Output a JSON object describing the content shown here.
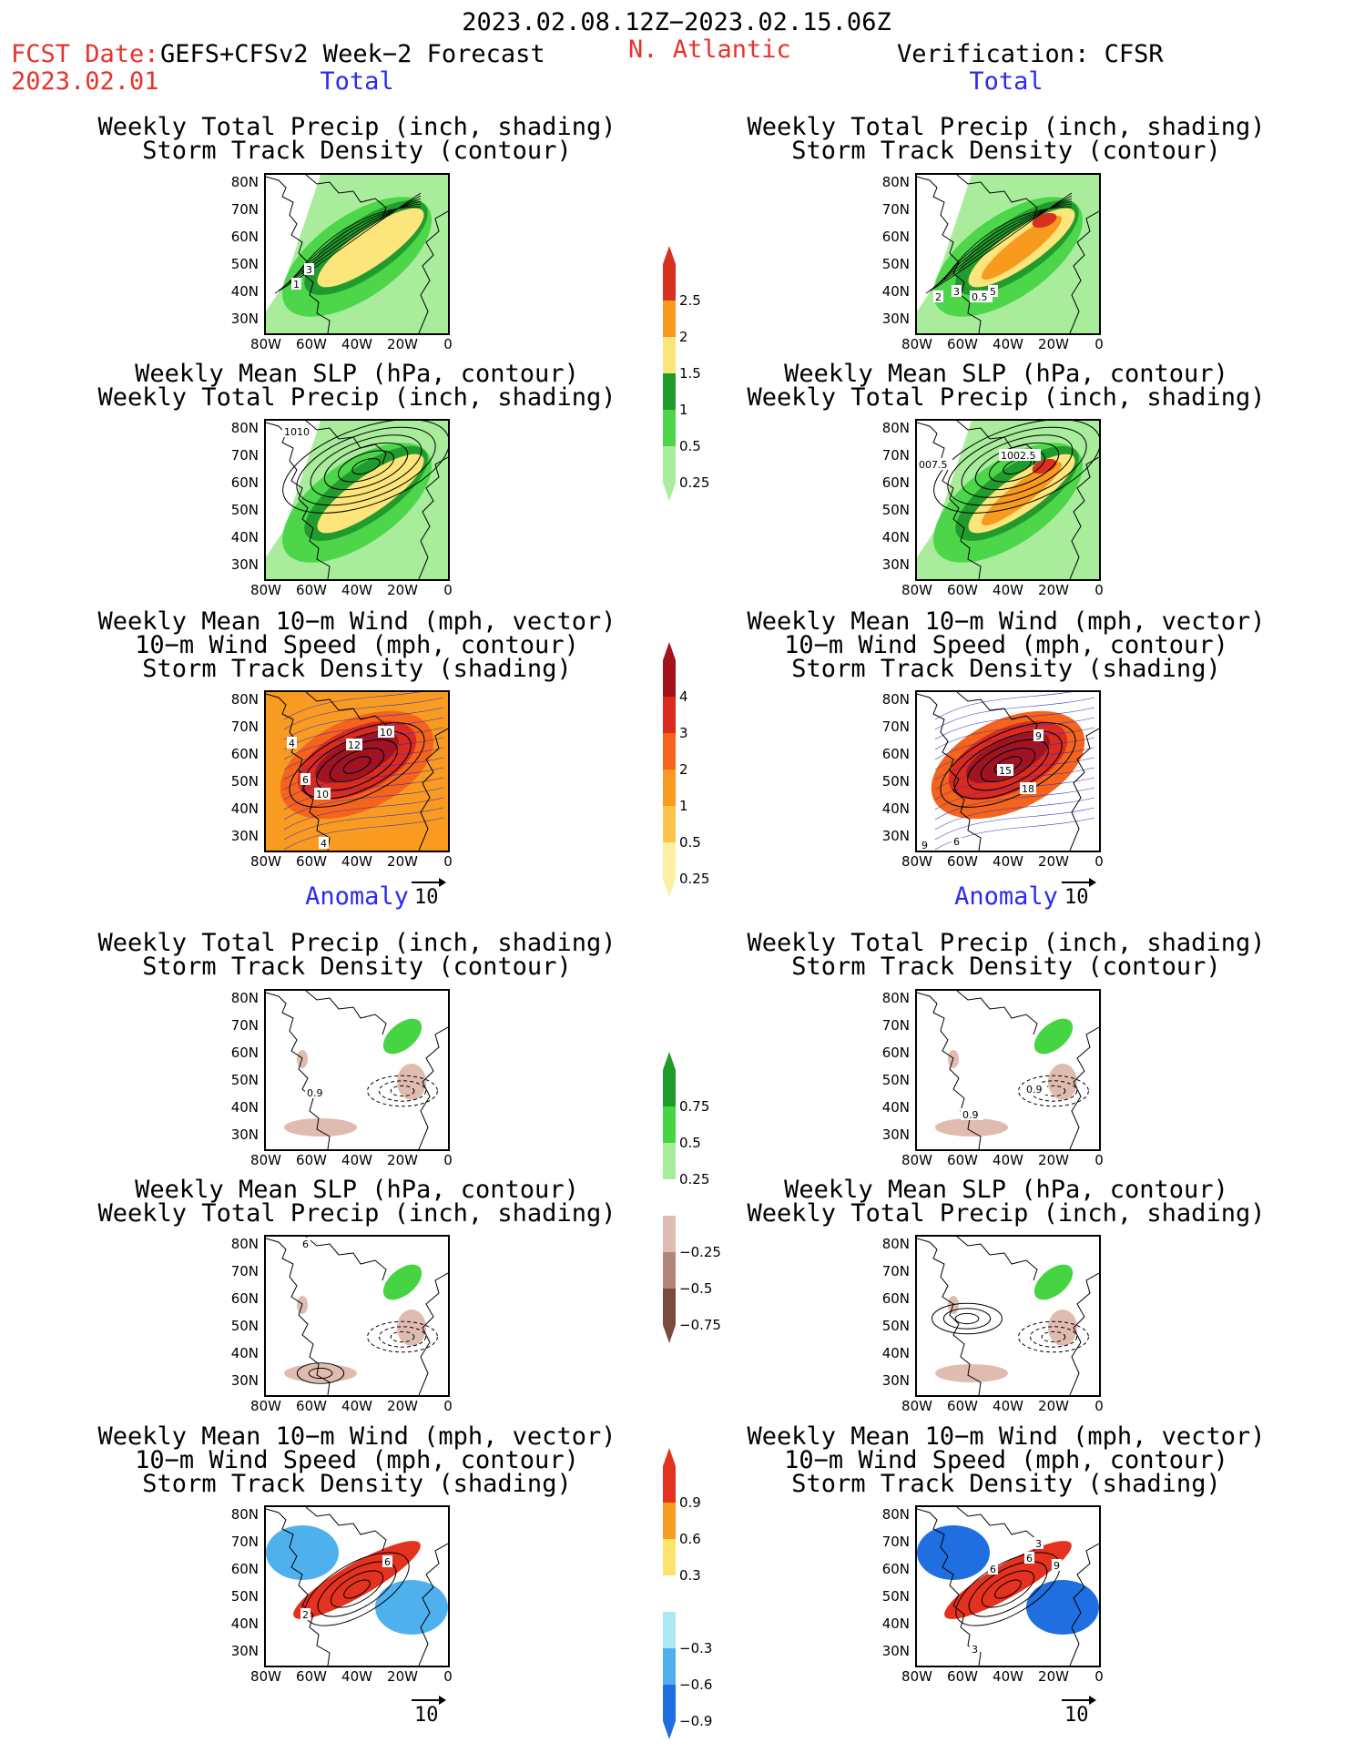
{
  "header": {
    "period": "2023.02.08.12Z−2023.02.15.06Z",
    "fcst_label": "FCST Date:",
    "fcst_date": "2023.02.01",
    "model": "GEFS+CFSv2 Week−2 Forecast",
    "region": "N. Atlantic",
    "verification": "Verification: CFSR"
  },
  "sections": {
    "total": "Total",
    "anomaly": "Anomaly"
  },
  "titles": {
    "precip_track_1": "Weekly Total Precip (inch, shading)",
    "precip_track_2": "Storm Track Density (contour)",
    "slp_precip_1": "Weekly Mean SLP (hPa, contour)",
    "slp_precip_2": "Weekly Total Precip (inch, shading)",
    "wind_1": "Weekly Mean 10−m Wind (mph, vector)",
    "wind_2": "10−m Wind Speed (mph, contour)",
    "wind_3": "Storm Track Density (shading)"
  },
  "axes": {
    "lat": [
      "80N",
      "70N",
      "60N",
      "50N",
      "40N",
      "30N"
    ],
    "lon": [
      "80W",
      "60W",
      "40W",
      "20W",
      "0"
    ]
  },
  "vector_ref": "10",
  "panel_labels": {
    "fc_precip": [
      "1",
      "3"
    ],
    "ob_precip": [
      "2",
      "3",
      "0.5",
      "5"
    ],
    "fc_slp": [
      "1010"
    ],
    "ob_slp": [
      "007.5",
      "1002.5"
    ],
    "fc_wind": [
      "12",
      "10",
      "10",
      "4",
      "4",
      "6"
    ],
    "ob_wind": [
      "15",
      "18",
      "9",
      "9",
      "6"
    ],
    "fc_anom_precip": [
      "0.9"
    ],
    "ob_anom_precip": [
      "0.9",
      "0.9"
    ],
    "fc_anom_slp": [
      "6"
    ],
    "fc_anom_wind": [
      "6",
      "2"
    ],
    "ob_anom_wind": [
      "6",
      "3",
      "6",
      "9",
      "3"
    ]
  },
  "colorbars": {
    "precip_total": {
      "labels": [
        "2.5",
        "2",
        "1.5",
        "1",
        "0.5",
        "0.25"
      ],
      "colors": [
        "#d7301f",
        "#f79a1e",
        "#fce57a",
        "#229b2e",
        "#4dd64a",
        "#a8ec9c"
      ]
    },
    "track_total": {
      "labels": [
        "4",
        "3",
        "2",
        "1",
        "0.5",
        "0.25"
      ],
      "colors": [
        "#a4121b",
        "#dc2a1e",
        "#f5641a",
        "#f89b20",
        "#fcc44a",
        "#fdf0a4"
      ]
    },
    "precip_anom": {
      "labels": [
        "0.75",
        "0.5",
        "0.25",
        "−0.25",
        "−0.5",
        "−0.75"
      ],
      "colors": [
        "#1e9c2a",
        "#46d443",
        "#a7ec9a",
        "#ffffff",
        "#e0bcb0",
        "#b2857a",
        "#7a4c3f"
      ]
    },
    "track_anom": {
      "labels": [
        "0.9",
        "0.6",
        "0.3",
        "−0.3",
        "−0.6",
        "−0.9"
      ],
      "colors": [
        "#e3321f",
        "#f79b22",
        "#fde46c",
        "#ffffff",
        "#aee8f5",
        "#4fb0ee",
        "#1f6fe0"
      ]
    }
  },
  "colors": {
    "header_red": "#e8322c",
    "section_blue": "#2b2bf0"
  }
}
